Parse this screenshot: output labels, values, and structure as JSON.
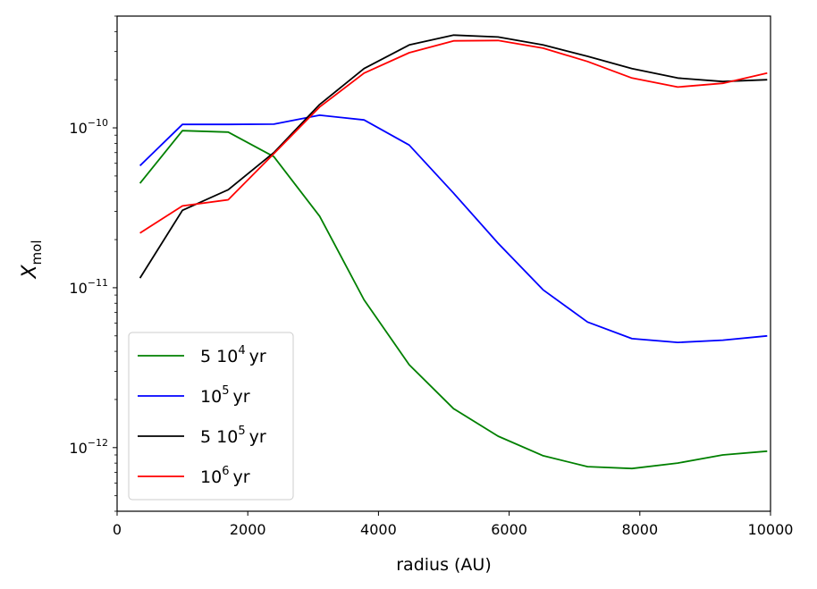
{
  "chart_data": {
    "type": "line",
    "title": "",
    "xlabel": "radius (AU)",
    "ylabel": "X_mol",
    "ylabel_main": "X",
    "ylabel_sub": "mol",
    "xlim": [
      0,
      10000
    ],
    "ylim": [
      4e-13,
      5e-10
    ],
    "yscale": "log",
    "grid": false,
    "legend_position": "lower-left",
    "x_ticks": [
      {
        "value": 0,
        "label": "0"
      },
      {
        "value": 2000,
        "label": "2000"
      },
      {
        "value": 4000,
        "label": "4000"
      },
      {
        "value": 6000,
        "label": "6000"
      },
      {
        "value": 8000,
        "label": "8000"
      },
      {
        "value": 10000,
        "label": "10000"
      }
    ],
    "y_ticks": [
      {
        "value": 1e-12,
        "base": "10",
        "exp": "−12"
      },
      {
        "value": 1e-11,
        "base": "10",
        "exp": "−11"
      },
      {
        "value": 1e-10,
        "base": "10",
        "exp": "−10"
      }
    ],
    "x": [
      350,
      1000,
      1700,
      2400,
      3100,
      3780,
      4470,
      5150,
      5830,
      6520,
      7200,
      7880,
      8580,
      9270,
      9950
    ],
    "series": [
      {
        "name": "5 10^4 yr",
        "label_prefix": "5 10",
        "label_exp": "4",
        "label_suffix": "yr",
        "color": "#008000",
        "values": [
          4.5e-11,
          9.6e-11,
          9.4e-11,
          6.6e-11,
          2.8e-11,
          8.4e-12,
          3.3e-12,
          1.75e-12,
          1.18e-12,
          8.9e-13,
          7.6e-13,
          7.4e-13,
          8e-13,
          9e-13,
          9.5e-13
        ]
      },
      {
        "name": "10^5 yr",
        "label_prefix": "10",
        "label_exp": "5",
        "label_suffix": "yr",
        "color": "#0000ff",
        "values": [
          5.8e-11,
          1.05e-10,
          1.05e-10,
          1.055e-10,
          1.2e-10,
          1.12e-10,
          7.8e-11,
          3.9e-11,
          1.9e-11,
          9.7e-12,
          6.1e-12,
          4.8e-12,
          4.55e-12,
          4.7e-12,
          5e-12
        ]
      },
      {
        "name": "5 10^5 yr",
        "label_prefix": "5 10",
        "label_exp": "5",
        "label_suffix": "yr",
        "color": "#000000",
        "values": [
          1.15e-11,
          3.05e-11,
          4.1e-11,
          7e-11,
          1.4e-10,
          2.35e-10,
          3.3e-10,
          3.8e-10,
          3.7e-10,
          3.3e-10,
          2.8e-10,
          2.35e-10,
          2.05e-10,
          1.95e-10,
          2e-10
        ]
      },
      {
        "name": "10^6 yr",
        "label_prefix": "10",
        "label_exp": "6",
        "label_suffix": "yr",
        "color": "#ff0000",
        "values": [
          2.2e-11,
          3.25e-11,
          3.55e-11,
          6.9e-11,
          1.35e-10,
          2.2e-10,
          2.95e-10,
          3.5e-10,
          3.52e-10,
          3.15e-10,
          2.6e-10,
          2.05e-10,
          1.8e-10,
          1.9e-10,
          2.2e-10
        ]
      }
    ]
  }
}
